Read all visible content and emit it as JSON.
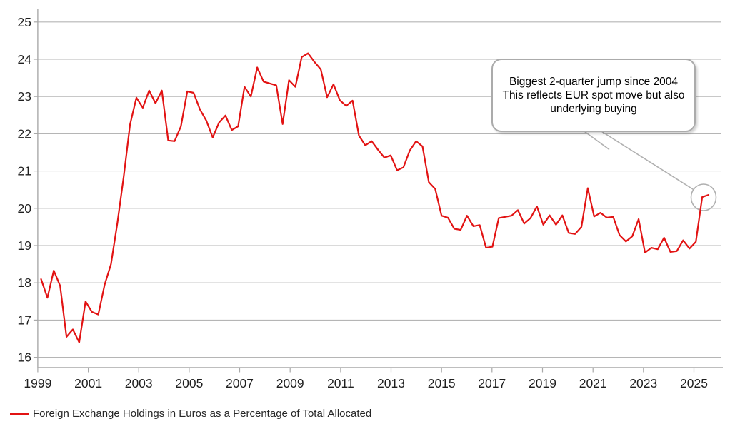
{
  "chart_data": {
    "type": "line",
    "title": "",
    "frequency": "quarterly",
    "start_period": "1999Q1",
    "end_period": "2025Q2",
    "grid": "horizontal",
    "x_tick_labels": [
      "1999",
      "2001",
      "2003",
      "2005",
      "2007",
      "2009",
      "2011",
      "2013",
      "2015",
      "2017",
      "2019",
      "2021",
      "2023",
      "2025"
    ],
    "y_tick_labels": [
      "16",
      "17",
      "18",
      "19",
      "20",
      "21",
      "22",
      "23",
      "24",
      "25"
    ],
    "ylim": [
      15.7,
      25.4
    ],
    "series": [
      {
        "name": "Foreign Exchange Holdings in Euros as a Percentage of Total Allocated",
        "color": "#e21313",
        "values": [
          18.1,
          17.6,
          18.33,
          17.92,
          16.55,
          16.75,
          16.4,
          17.5,
          17.22,
          17.15,
          17.95,
          18.5,
          19.6,
          20.85,
          22.25,
          22.97,
          22.7,
          23.16,
          22.82,
          23.16,
          21.82,
          21.8,
          22.2,
          23.14,
          23.1,
          22.65,
          22.35,
          21.9,
          22.3,
          22.49,
          22.1,
          22.2,
          23.26,
          23.0,
          23.78,
          23.4,
          23.35,
          23.3,
          22.26,
          23.44,
          23.26,
          24.06,
          24.16,
          23.93,
          23.73,
          22.98,
          23.33,
          22.9,
          22.75,
          22.89,
          21.95,
          21.69,
          21.8,
          21.57,
          21.36,
          21.42,
          21.02,
          21.1,
          21.55,
          21.8,
          21.66,
          20.7,
          20.52,
          19.8,
          19.75,
          19.45,
          19.42,
          19.8,
          19.52,
          19.55,
          18.94,
          18.97,
          19.74,
          19.77,
          19.8,
          19.95,
          19.59,
          19.74,
          20.05,
          19.56,
          19.81,
          19.56,
          19.81,
          19.34,
          19.31,
          19.5,
          20.54,
          19.78,
          19.88,
          19.75,
          19.77,
          19.28,
          19.11,
          19.25,
          19.71,
          18.81,
          18.94,
          18.9,
          19.21,
          18.83,
          18.85,
          19.14,
          18.92,
          19.1,
          20.3,
          20.36
        ]
      }
    ],
    "legend_position": "bottom-left"
  },
  "annotation": {
    "line1": "Biggest 2-quarter jump since 2004",
    "line2": "This reflects EUR spot move but also underlying buying",
    "highlight": "circle around last two data points (2025Q1, 2025Q2)"
  },
  "legend": {
    "label": "Foreign Exchange Holdings in Euros as a Percentage of Total Allocated",
    "swatch_color": "#e21313"
  },
  "colors": {
    "line": "#e21313",
    "gridline": "#b5b5b5",
    "axis_spine": "#a9a9a9",
    "tick_label": "#1f1f1f",
    "annotation_border": "#ababab",
    "annotation_leader": "#b0b0b0",
    "background": "#ffffff"
  }
}
